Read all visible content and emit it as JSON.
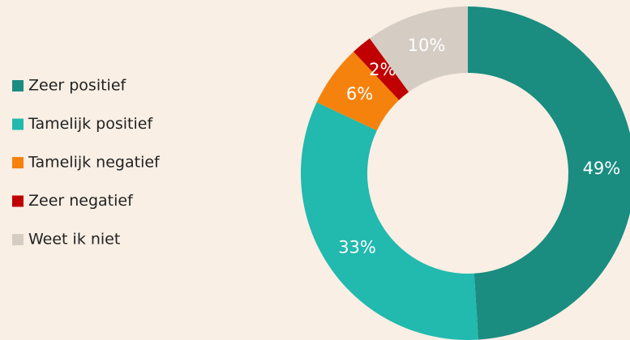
{
  "chart_data": {
    "type": "donut",
    "categories": [
      "Zeer positief",
      "Tamelijk positief",
      "Tamelijk negatief",
      "Zeer negatief",
      "Weet ik niet"
    ],
    "values": [
      49,
      33,
      6,
      2,
      10
    ],
    "value_labels": [
      "49%",
      "33%",
      "6%",
      "2%",
      "10%"
    ],
    "colors": [
      "#1a8c80",
      "#22b9ae",
      "#f5820d",
      "#c00000",
      "#d5ccc4"
    ],
    "legend": "left"
  }
}
